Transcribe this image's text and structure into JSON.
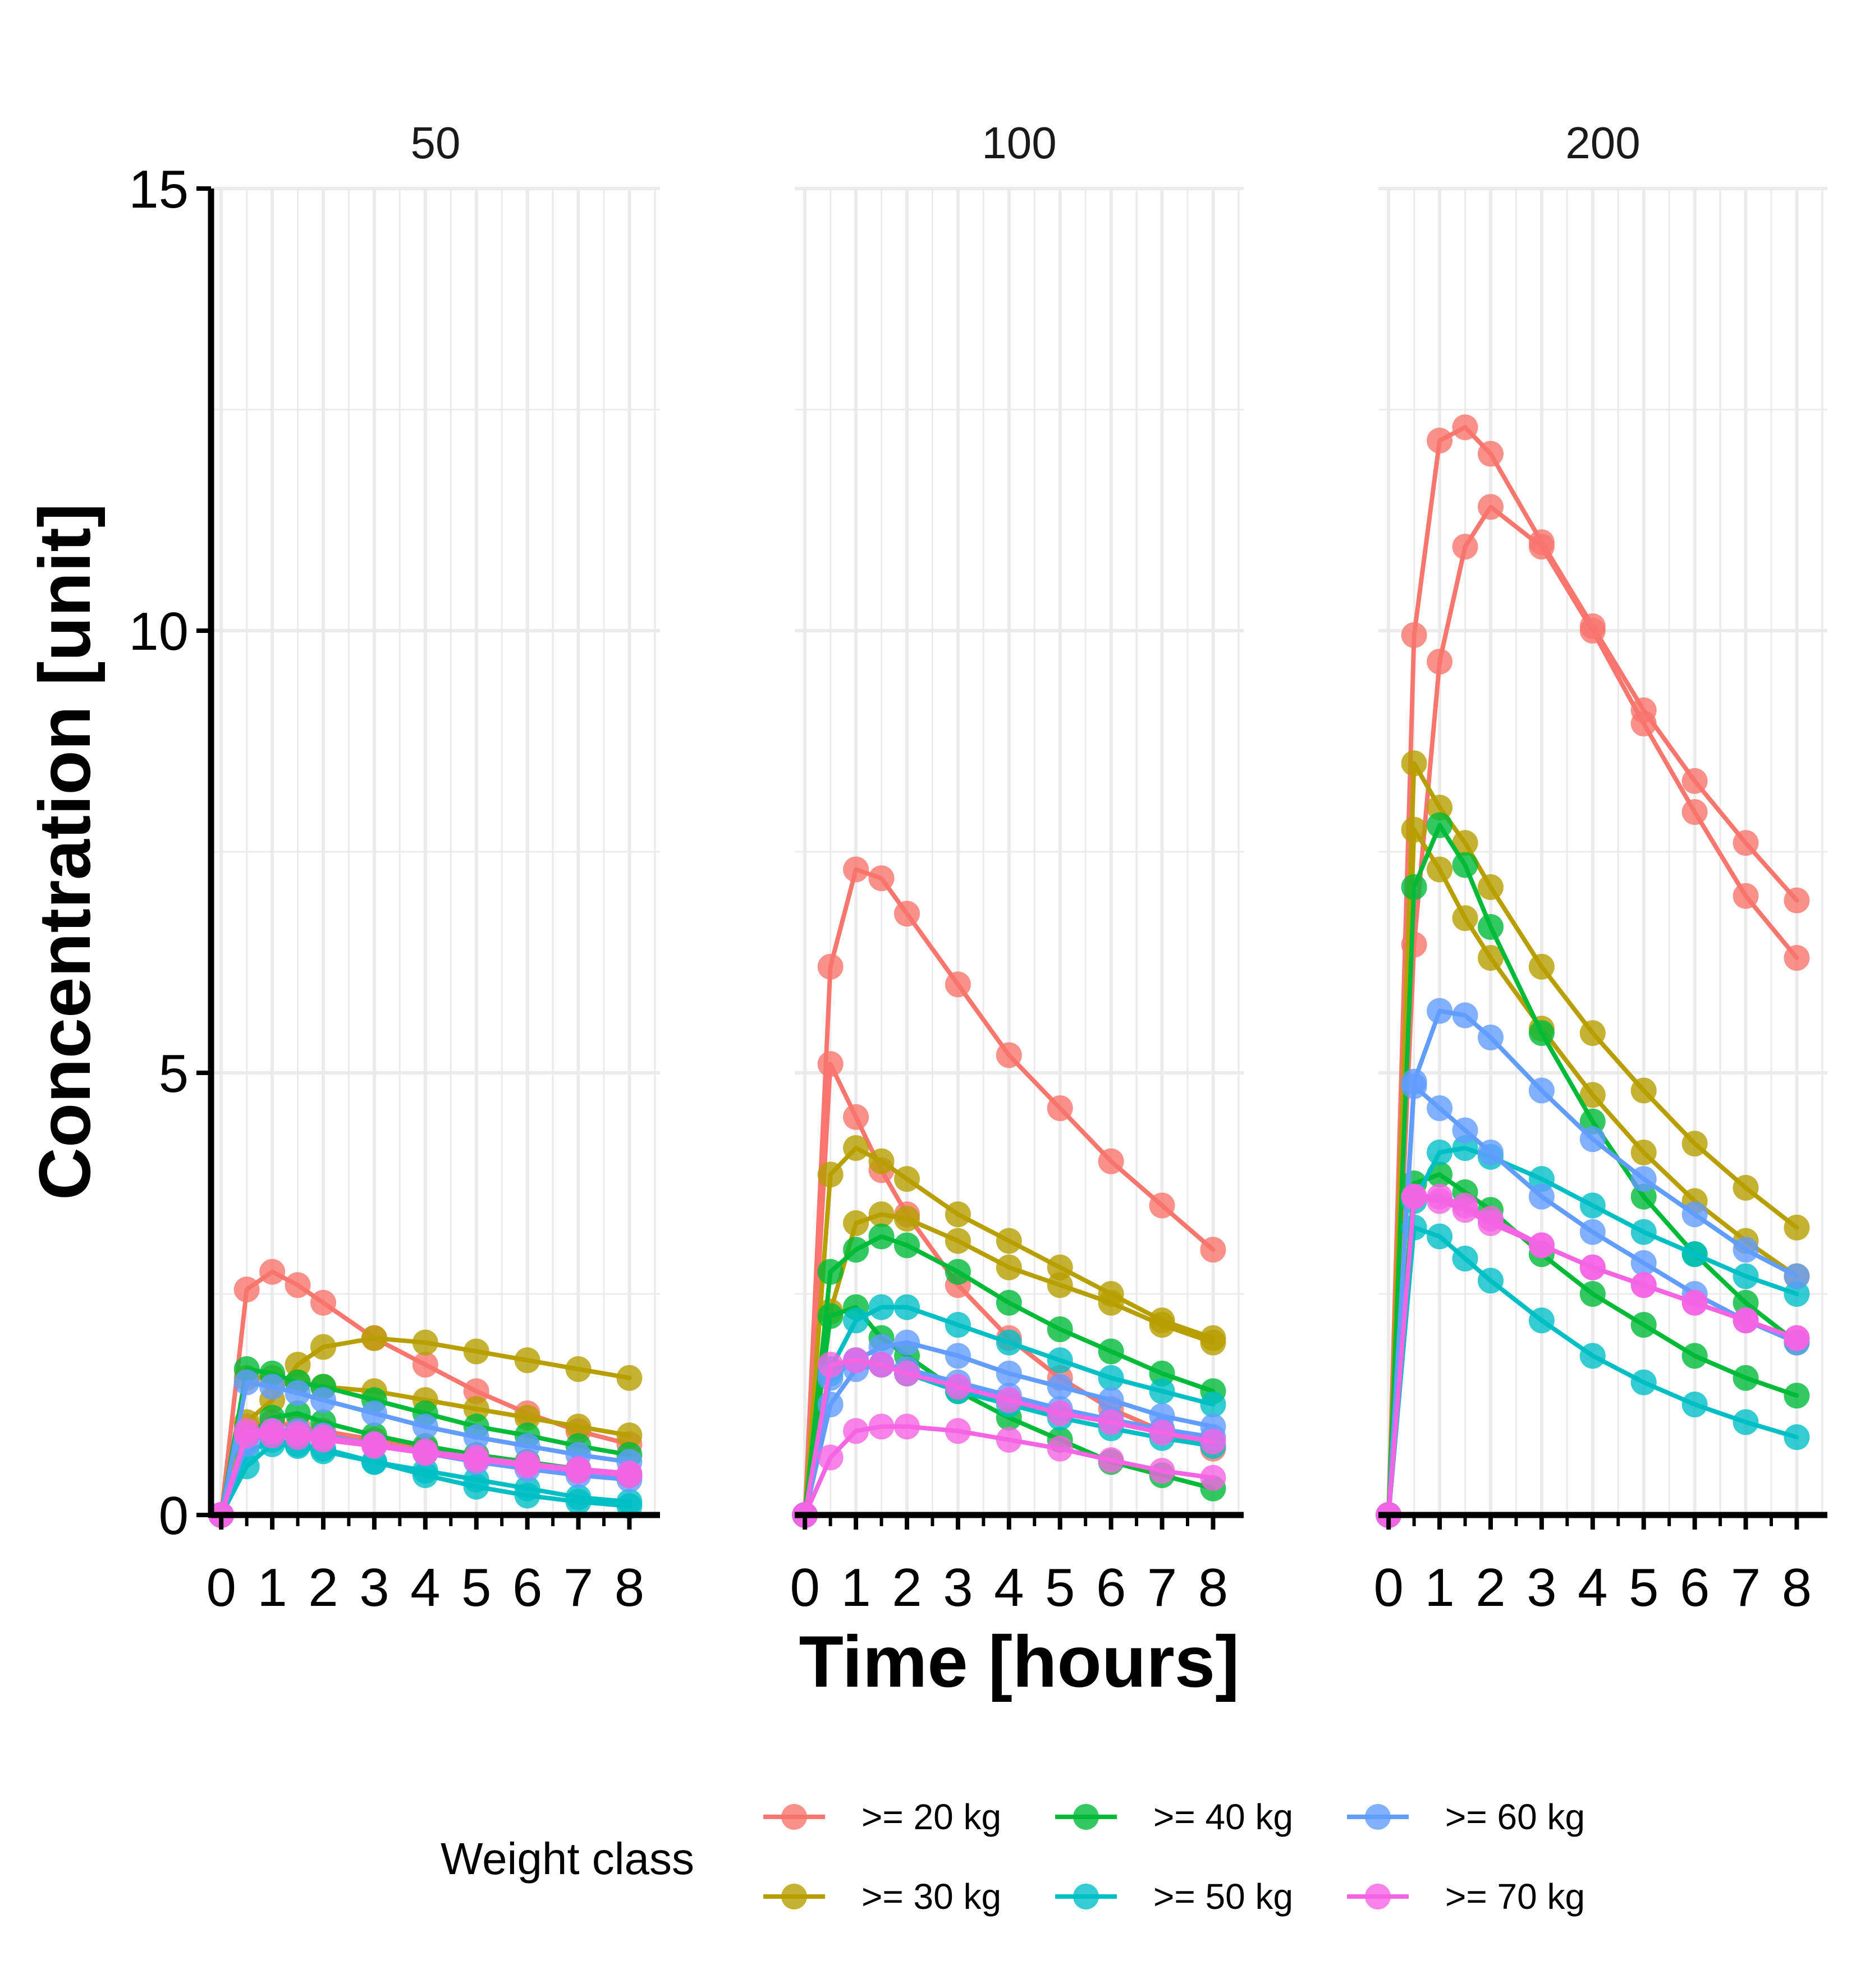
{
  "chart_data": {
    "type": "line",
    "xlabel": "Time [hours]",
    "ylabel": "Concentration [unit]",
    "xlim": [
      -0.2,
      8.6
    ],
    "ylim": [
      0,
      15
    ],
    "x_ticks": [
      0,
      1,
      2,
      3,
      4,
      5,
      6,
      7,
      8
    ],
    "y_ticks": [
      0,
      5,
      10,
      15
    ],
    "grid": true,
    "legend": {
      "title": "Weight class",
      "position": "bottom",
      "entries": [
        {
          "label": ">= 20 kg",
          "color": "#F8766D"
        },
        {
          "label": ">= 30 kg",
          "color": "#B79F00"
        },
        {
          "label": ">= 40 kg",
          "color": "#00BA38"
        },
        {
          "label": ">= 50 kg",
          "color": "#00BFC4"
        },
        {
          "label": ">= 60 kg",
          "color": "#619CFF"
        },
        {
          "label": ">= 70 kg",
          "color": "#F564E3"
        }
      ]
    },
    "x": [
      0,
      0.5,
      1,
      1.5,
      2,
      3,
      4,
      5,
      6,
      7,
      8
    ],
    "panels": [
      {
        "title": "50",
        "series": [
          {
            "class": ">= 20 kg",
            "values": [
              0,
              2.55,
              2.75,
              2.6,
              2.4,
              2.0,
              1.7,
              1.4,
              1.15,
              0.95,
              0.8
            ]
          },
          {
            "class": ">= 20 kg",
            "values": [
              0,
              1.0,
              1.05,
              1.0,
              0.95,
              0.85,
              0.75,
              0.65,
              0.58,
              0.5,
              0.45
            ]
          },
          {
            "class": ">= 30 kg",
            "values": [
              0,
              1.05,
              1.3,
              1.7,
              1.9,
              2.0,
              1.95,
              1.85,
              1.75,
              1.65,
              1.55
            ]
          },
          {
            "class": ">= 30 kg",
            "values": [
              0,
              1.55,
              1.55,
              1.5,
              1.45,
              1.4,
              1.3,
              1.2,
              1.1,
              1.0,
              0.9
            ]
          },
          {
            "class": ">= 40 kg",
            "values": [
              0,
              1.65,
              1.6,
              1.5,
              1.45,
              1.3,
              1.15,
              1.0,
              0.9,
              0.78,
              0.68
            ]
          },
          {
            "class": ">= 40 kg",
            "values": [
              0,
              0.9,
              1.1,
              1.15,
              1.05,
              0.9,
              0.78,
              0.68,
              0.6,
              0.52,
              0.45
            ]
          },
          {
            "class": ">= 50 kg",
            "values": [
              0,
              0.55,
              0.8,
              0.78,
              0.72,
              0.6,
              0.45,
              0.32,
              0.22,
              0.15,
              0.1
            ]
          },
          {
            "class": ">= 50 kg",
            "values": [
              0,
              0.7,
              0.85,
              0.8,
              0.75,
              0.6,
              0.5,
              0.4,
              0.3,
              0.2,
              0.15
            ]
          },
          {
            "class": ">= 60 kg",
            "values": [
              0,
              1.5,
              1.45,
              1.38,
              1.3,
              1.15,
              1.0,
              0.88,
              0.78,
              0.68,
              0.6
            ]
          },
          {
            "class": ">= 60 kg",
            "values": [
              0,
              0.8,
              0.95,
              0.95,
              0.9,
              0.8,
              0.7,
              0.6,
              0.52,
              0.45,
              0.4
            ]
          },
          {
            "class": ">= 70 kg",
            "values": [
              0,
              0.95,
              0.95,
              0.92,
              0.88,
              0.8,
              0.72,
              0.65,
              0.58,
              0.52,
              0.47
            ]
          },
          {
            "class": ">= 70 kg",
            "values": [
              0,
              0.9,
              0.9,
              0.88,
              0.85,
              0.78,
              0.7,
              0.62,
              0.56,
              0.5,
              0.45
            ]
          }
        ]
      },
      {
        "title": "100",
        "series": [
          {
            "class": ">= 20 kg",
            "values": [
              0,
              6.2,
              7.3,
              7.2,
              6.8,
              6.0,
              5.2,
              4.6,
              4.0,
              3.5,
              3.0
            ]
          },
          {
            "class": ">= 20 kg",
            "values": [
              0,
              5.1,
              4.5,
              3.9,
              3.4,
              2.6,
              2.0,
              1.55,
              1.2,
              0.95,
              0.75
            ]
          },
          {
            "class": ">= 30 kg",
            "values": [
              0,
              3.85,
              4.15,
              4.0,
              3.8,
              3.4,
              3.1,
              2.8,
              2.5,
              2.2,
              2.0
            ]
          },
          {
            "class": ">= 30 kg",
            "values": [
              0,
              2.3,
              3.3,
              3.4,
              3.35,
              3.1,
              2.8,
              2.6,
              2.4,
              2.15,
              1.95
            ]
          },
          {
            "class": ">= 40 kg",
            "values": [
              0,
              2.75,
              3.0,
              3.15,
              3.05,
              2.75,
              2.4,
              2.1,
              1.85,
              1.6,
              1.4
            ]
          },
          {
            "class": ">= 40 kg",
            "values": [
              0,
              2.25,
              2.35,
              2.0,
              1.8,
              1.4,
              1.1,
              0.85,
              0.6,
              0.45,
              0.3
            ]
          },
          {
            "class": ">= 50 kg",
            "values": [
              0,
              1.65,
              2.2,
              2.35,
              2.35,
              2.15,
              1.95,
              1.75,
              1.55,
              1.4,
              1.25
            ]
          },
          {
            "class": ">= 50 kg",
            "values": [
              0,
              1.6,
              1.75,
              1.7,
              1.6,
              1.4,
              1.25,
              1.1,
              0.98,
              0.87,
              0.78
            ]
          },
          {
            "class": ">= 60 kg",
            "values": [
              0,
              1.55,
              1.75,
              1.9,
              1.95,
              1.8,
              1.6,
              1.45,
              1.3,
              1.12,
              1.0
            ]
          },
          {
            "class": ">= 60 kg",
            "values": [
              0,
              1.25,
              1.65,
              1.7,
              1.65,
              1.5,
              1.35,
              1.2,
              1.08,
              0.97,
              0.88
            ]
          },
          {
            "class": ">= 70 kg",
            "values": [
              0,
              0.65,
              0.95,
              1.0,
              1.0,
              0.95,
              0.85,
              0.75,
              0.62,
              0.5,
              0.42
            ]
          },
          {
            "class": ">= 70 kg",
            "values": [
              0,
              1.7,
              1.75,
              1.7,
              1.6,
              1.45,
              1.3,
              1.15,
              1.05,
              0.93,
              0.83
            ]
          }
        ]
      },
      {
        "title": "200",
        "series": [
          {
            "class": ">= 20 kg",
            "values": [
              0,
              9.95,
              12.15,
              12.3,
              12.0,
              11.0,
              10.05,
              9.1,
              8.3,
              7.6,
              6.95
            ]
          },
          {
            "class": ">= 20 kg",
            "values": [
              0,
              6.45,
              9.65,
              10.95,
              11.4,
              10.95,
              10.0,
              8.95,
              7.95,
              7.0,
              6.3
            ]
          },
          {
            "class": ">= 30 kg",
            "values": [
              0,
              8.5,
              8.0,
              7.6,
              7.1,
              6.2,
              5.45,
              4.8,
              4.2,
              3.7,
              3.25
            ]
          },
          {
            "class": ">= 30 kg",
            "values": [
              0,
              7.75,
              7.3,
              6.75,
              6.3,
              5.5,
              4.75,
              4.1,
              3.55,
              3.1,
              2.7
            ]
          },
          {
            "class": ">= 40 kg",
            "values": [
              0,
              7.1,
              7.8,
              7.35,
              6.65,
              5.45,
              4.45,
              3.6,
              2.95,
              2.4,
              1.95
            ]
          },
          {
            "class": ">= 40 kg",
            "values": [
              0,
              3.75,
              3.85,
              3.65,
              3.45,
              2.95,
              2.5,
              2.15,
              1.8,
              1.55,
              1.35
            ]
          },
          {
            "class": ">= 50 kg",
            "values": [
              0,
              3.25,
              3.15,
              2.9,
              2.65,
              2.2,
              1.8,
              1.5,
              1.25,
              1.05,
              0.88
            ]
          },
          {
            "class": ">= 50 kg",
            "values": [
              0,
              3.55,
              4.1,
              4.15,
              4.05,
              3.8,
              3.5,
              3.2,
              2.95,
              2.7,
              2.5
            ]
          },
          {
            "class": ">= 60 kg",
            "values": [
              0,
              4.9,
              5.7,
              5.65,
              5.4,
              4.8,
              4.25,
              3.8,
              3.4,
              3.0,
              2.7
            ]
          },
          {
            "class": ">= 60 kg",
            "values": [
              0,
              4.85,
              4.6,
              4.35,
              4.1,
              3.6,
              3.2,
              2.85,
              2.5,
              2.2,
              1.95
            ]
          },
          {
            "class": ">= 70 kg",
            "values": [
              0,
              3.6,
              3.6,
              3.5,
              3.35,
              3.05,
              2.8,
              2.6,
              2.4,
              2.2,
              2.0
            ]
          },
          {
            "class": ">= 70 kg",
            "values": [
              0,
              3.6,
              3.55,
              3.45,
              3.3,
              3.05,
              2.8,
              2.6,
              2.4,
              2.2,
              2.0
            ]
          }
        ]
      }
    ]
  }
}
